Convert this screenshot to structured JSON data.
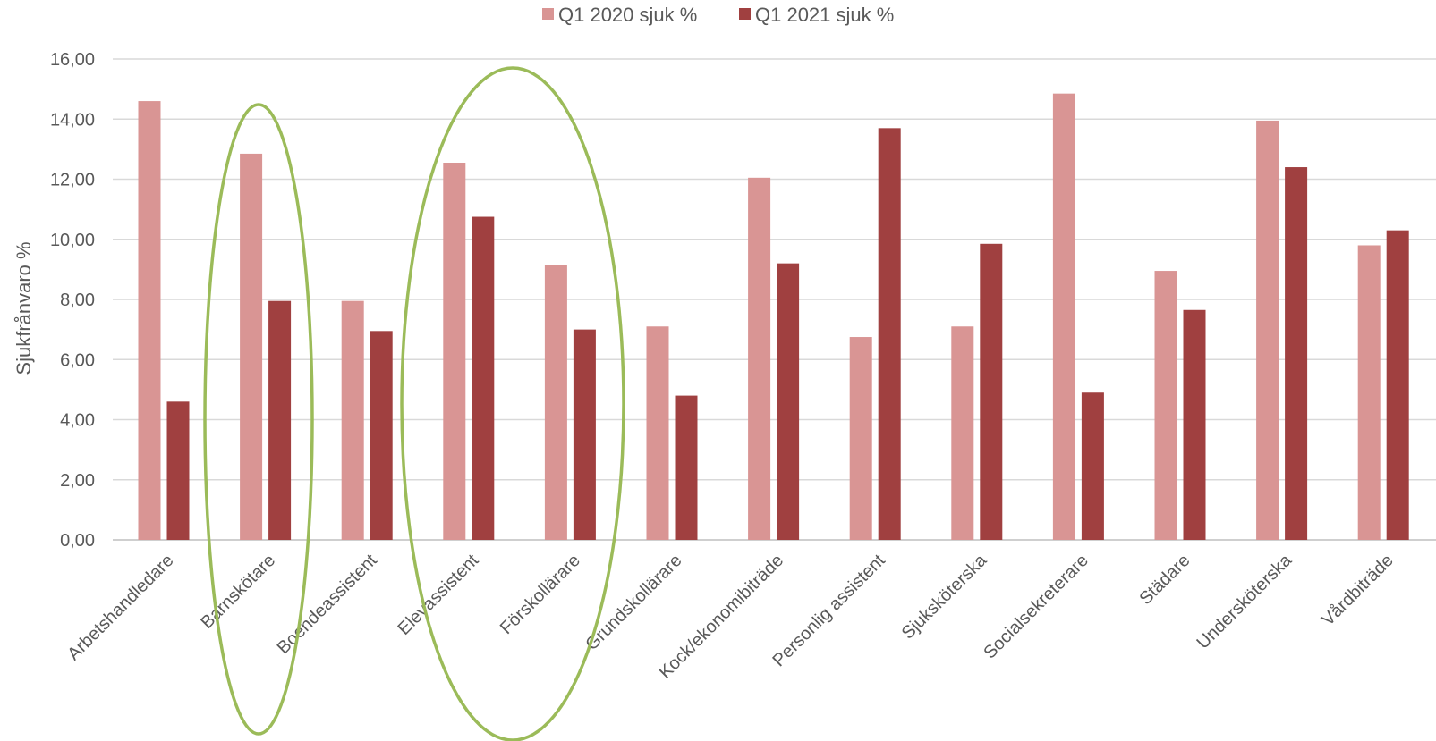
{
  "chart_data": {
    "type": "bar",
    "title": "",
    "xlabel": "",
    "ylabel": "Sjukfrånvaro %",
    "ylim": [
      0,
      16
    ],
    "y_ticks": [
      "0,00",
      "2,00",
      "4,00",
      "6,00",
      "8,00",
      "10,00",
      "12,00",
      "14,00",
      "16,00"
    ],
    "grid": true,
    "legend_position": "top",
    "categories": [
      "Arbetshandledare",
      "Barnskötare",
      "Boendeassistent",
      "Elevassistent",
      "Förskollärare",
      "Grundskollärare",
      "Kock/ekonomibiträde",
      "Personlig assistent",
      "Sjuksköterska",
      "Socialsekreterare",
      "Städare",
      "Undersköterska",
      "Vårdbiträde"
    ],
    "series": [
      {
        "name": "Q1 2020 sjuk %",
        "color": "#d99594",
        "values": [
          14.6,
          12.85,
          7.95,
          12.55,
          9.15,
          7.1,
          12.05,
          6.75,
          7.1,
          14.85,
          8.95,
          13.95,
          9.8
        ]
      },
      {
        "name": "Q1 2021 sjuk %",
        "color": "#a04040",
        "values": [
          4.6,
          7.95,
          6.95,
          10.75,
          7.0,
          4.8,
          9.2,
          13.7,
          9.85,
          4.9,
          7.65,
          12.4,
          10.3
        ]
      }
    ],
    "annotations": [
      {
        "shape": "ellipse",
        "color": "#9bbb59",
        "encloses": [
          "Barnskötare"
        ]
      },
      {
        "shape": "ellipse",
        "color": "#9bbb59",
        "encloses": [
          "Elevassistent",
          "Förskollärare"
        ]
      }
    ]
  }
}
